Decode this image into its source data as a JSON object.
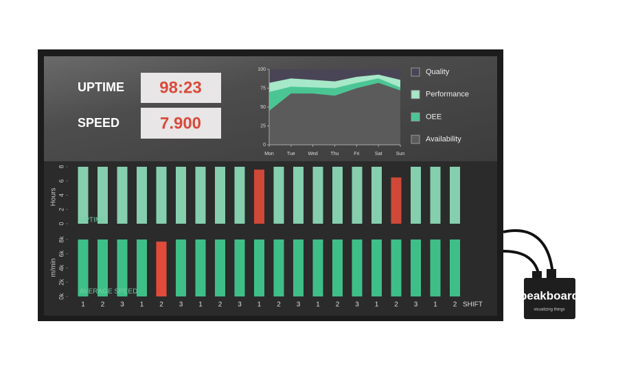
{
  "kpis": [
    {
      "label": "UPTIME",
      "value": "98:23"
    },
    {
      "label": "SPEED",
      "value": "7.900"
    }
  ],
  "device": {
    "brand": "peakboard",
    "tagline": "visualizing things"
  },
  "chart_data": [
    {
      "type": "area",
      "categories": [
        "Mon",
        "Tue",
        "Wed",
        "Thu",
        "Fri",
        "Sat",
        "Sun"
      ],
      "ylim": [
        0,
        100
      ],
      "yticks": [
        0,
        25,
        50,
        75,
        100
      ],
      "grid": false,
      "series": [
        {
          "name": "Quality",
          "color": "#4a4556",
          "values": [
            100,
            100,
            100,
            100,
            100,
            100,
            100
          ]
        },
        {
          "name": "Performance",
          "color": "#a6e8c8",
          "values": [
            82,
            88,
            86,
            84,
            90,
            93,
            86
          ]
        },
        {
          "name": "OEE",
          "color": "#4cc594",
          "values": [
            70,
            77,
            76,
            75,
            82,
            88,
            76
          ]
        },
        {
          "name": "Availability",
          "color": "#5b5b5b",
          "values": [
            45,
            68,
            68,
            65,
            75,
            82,
            72
          ]
        }
      ]
    },
    {
      "type": "bar",
      "label": "UPTIME",
      "y_label": "Hours",
      "categories": [
        "1",
        "2",
        "3",
        "1",
        "2",
        "3",
        "1",
        "2",
        "3",
        "1",
        "2",
        "3",
        "1",
        "2",
        "3",
        "1",
        "2",
        "3",
        "1",
        "2"
      ],
      "values": [
        8,
        8,
        8,
        8,
        8,
        8,
        8,
        8,
        8,
        7.6,
        8,
        8,
        8,
        8,
        8,
        8,
        6.5,
        8,
        8,
        8
      ],
      "colors": [
        "#8fe0bc",
        "#8fe0bc",
        "#8fe0bc",
        "#8fe0bc",
        "#8fe0bc",
        "#8fe0bc",
        "#8fe0bc",
        "#8fe0bc",
        "#8fe0bc",
        "#e24b3a",
        "#8fe0bc",
        "#8fe0bc",
        "#8fe0bc",
        "#8fe0bc",
        "#8fe0bc",
        "#8fe0bc",
        "#e24b3a",
        "#8fe0bc",
        "#8fe0bc",
        "#8fe0bc"
      ],
      "ylim": [
        0,
        8
      ],
      "yticks": [
        0,
        2,
        4,
        6,
        8
      ]
    },
    {
      "type": "bar",
      "label": "AVERAGE SPEED",
      "y_label": "m/min",
      "x_label": "SHIFT",
      "categories": [
        "1",
        "2",
        "3",
        "1",
        "2",
        "3",
        "1",
        "2",
        "3",
        "1",
        "2",
        "3",
        "1",
        "2",
        "3",
        "1",
        "2",
        "3",
        "1",
        "2"
      ],
      "values": [
        8000,
        8000,
        8000,
        8000,
        7700,
        8000,
        8000,
        8000,
        8000,
        8000,
        8000,
        8000,
        8000,
        8000,
        8000,
        8000,
        8000,
        8000,
        8000,
        8000
      ],
      "colors": [
        "#3fbf88",
        "#3fbf88",
        "#3fbf88",
        "#3fbf88",
        "#e24b3a",
        "#3fbf88",
        "#3fbf88",
        "#3fbf88",
        "#3fbf88",
        "#3fbf88",
        "#3fbf88",
        "#3fbf88",
        "#3fbf88",
        "#3fbf88",
        "#3fbf88",
        "#3fbf88",
        "#3fbf88",
        "#3fbf88",
        "#3fbf88",
        "#3fbf88"
      ],
      "ylim": [
        0,
        8000
      ],
      "yticks": [
        {
          "value": 0,
          "label": "0k"
        },
        {
          "value": 2000,
          "label": "2k"
        },
        {
          "value": 4000,
          "label": "4k"
        },
        {
          "value": 6000,
          "label": "6k"
        },
        {
          "value": 8000,
          "label": "8k"
        }
      ]
    }
  ]
}
